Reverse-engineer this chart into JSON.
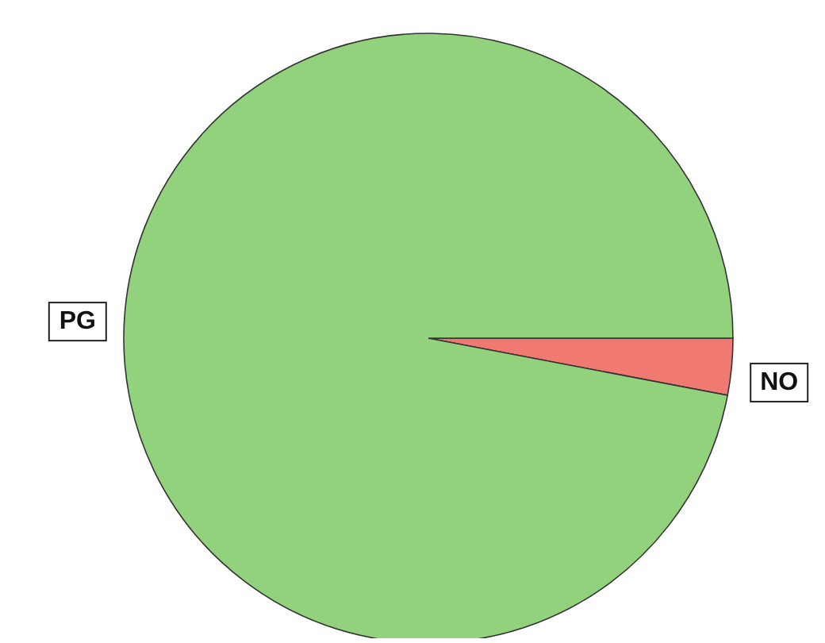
{
  "chart_data": {
    "type": "pie",
    "categories": [
      "NO",
      "PG"
    ],
    "values": [
      3,
      97
    ],
    "colors": [
      "#f07a72",
      "#92d27c"
    ]
  }
}
